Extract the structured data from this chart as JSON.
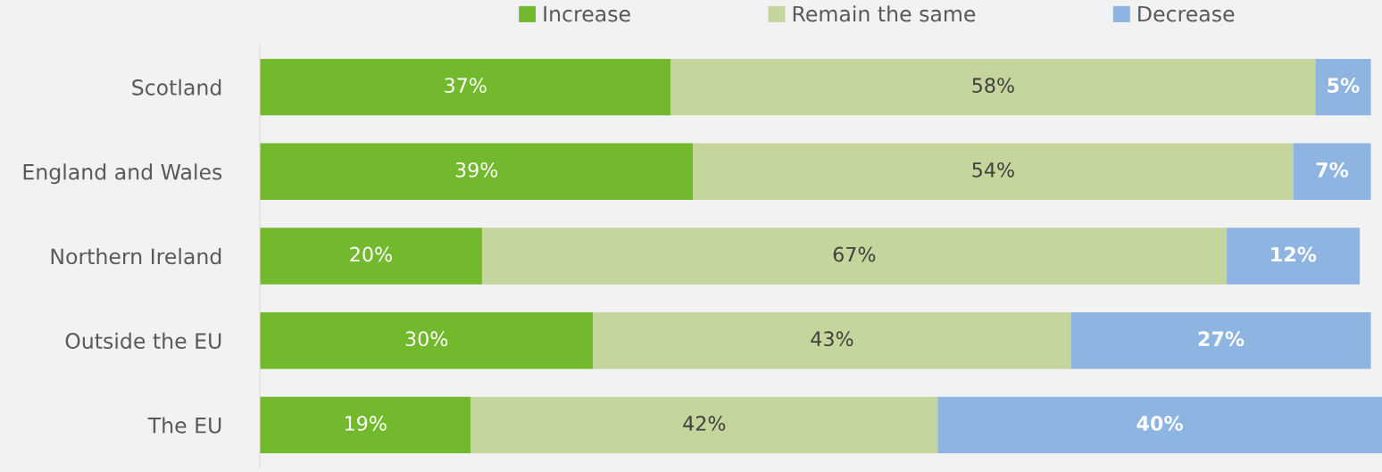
{
  "chart_data": {
    "type": "bar",
    "orientation": "horizontal",
    "stacked": true,
    "legend": "top",
    "grid": false,
    "categories": [
      "Scotland",
      "England and Wales",
      "Northern Ireland",
      "Outside the EU",
      "The EU"
    ],
    "series": [
      {
        "name": "Increase",
        "color": "#73b92e",
        "values": [
          37,
          39,
          20,
          30,
          19
        ],
        "value_labels": [
          "37%",
          "39%",
          "20%",
          "30%",
          "19%"
        ]
      },
      {
        "name": "Remain the same",
        "color": "#c4d69b",
        "values": [
          58,
          54,
          67,
          43,
          42
        ],
        "value_labels": [
          "58%",
          "54%",
          "67%",
          "43%",
          "42%"
        ]
      },
      {
        "name": "Decrease",
        "color": "#8eb4e2",
        "values": [
          5,
          7,
          12,
          27,
          40
        ],
        "value_labels": [
          "5%",
          "7%",
          "12%",
          "27%",
          "40%"
        ]
      }
    ]
  }
}
